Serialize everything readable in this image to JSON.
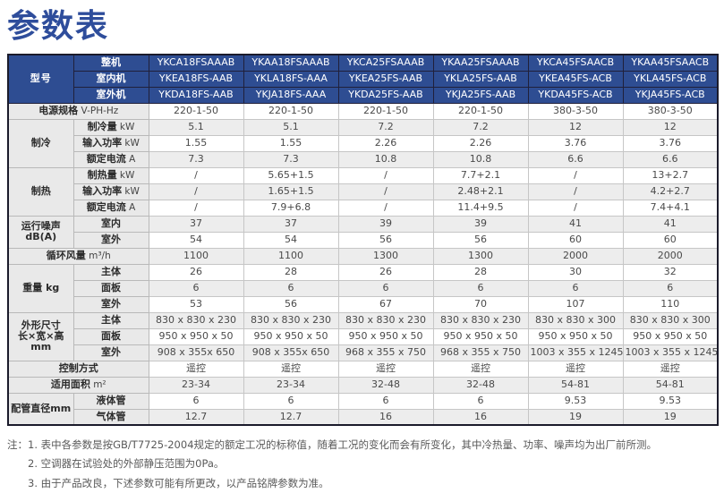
{
  "page_title": "参数表",
  "table": {
    "model_header": {
      "corner_label": "型号",
      "rows": [
        {
          "label": "整机",
          "values": [
            "YKCA18FSAAAB",
            "YKAA18FSAAAB",
            "YKCA25FSAAAB",
            "YKAA25FSAAAB",
            "YKCA45FSAACB",
            "YKAA45FSAACB"
          ]
        },
        {
          "label": "室内机",
          "values": [
            "YKEA18FS-AAB",
            "YKLA18FS-AAA",
            "YKEA25FS-AAB",
            "YKLA25FS-AAB",
            "YKEA45FS-ACB",
            "YKLA45FS-ACB"
          ]
        },
        {
          "label": "室外机",
          "values": [
            "YKDA18FS-AAB",
            "YKJA18FS-AAA",
            "YKDA25FS-AAB",
            "YKJA25FS-AAB",
            "YKDA45FS-ACB",
            "YKJA45FS-ACB"
          ]
        }
      ]
    },
    "sections": [
      {
        "category_lines": [],
        "rows": [
          {
            "full": true,
            "label": "电源规格",
            "unit": "V-PH-Hz",
            "values": [
              "220-1-50",
              "220-1-50",
              "220-1-50",
              "220-1-50",
              "380-3-50",
              "380-3-50"
            ]
          }
        ]
      },
      {
        "category_lines": [
          "制冷"
        ],
        "rows": [
          {
            "label": "制冷量",
            "unit": "kW",
            "values": [
              "5.1",
              "5.1",
              "7.2",
              "7.2",
              "12",
              "12"
            ]
          },
          {
            "label": "输入功率",
            "unit": "kW",
            "values": [
              "1.55",
              "1.55",
              "2.26",
              "2.26",
              "3.76",
              "3.76"
            ]
          },
          {
            "label": "额定电流",
            "unit": "A",
            "values": [
              "7.3",
              "7.3",
              "10.8",
              "10.8",
              "6.6",
              "6.6"
            ]
          }
        ]
      },
      {
        "category_lines": [
          "制热"
        ],
        "rows": [
          {
            "label": "制热量",
            "unit": "kW",
            "values": [
              "/",
              "5.65+1.5",
              "/",
              "7.7+2.1",
              "/",
              "13+2.7"
            ]
          },
          {
            "label": "输入功率",
            "unit": "kW",
            "values": [
              "/",
              "1.65+1.5",
              "/",
              "2.48+2.1",
              "/",
              "4.2+2.7"
            ]
          },
          {
            "label": "额定电流",
            "unit": "A",
            "values": [
              "/",
              "7.9+6.8",
              "/",
              "11.4+9.5",
              "/",
              "7.4+4.1"
            ]
          }
        ]
      },
      {
        "category_lines": [
          "运行噪声",
          "dB(A)"
        ],
        "rows": [
          {
            "label": "室内",
            "unit": "",
            "values": [
              "37",
              "37",
              "39",
              "39",
              "41",
              "41"
            ]
          },
          {
            "label": "室外",
            "unit": "",
            "values": [
              "54",
              "54",
              "56",
              "56",
              "60",
              "60"
            ]
          }
        ]
      },
      {
        "category_lines": [],
        "rows": [
          {
            "full": true,
            "label": "循环风量",
            "unit": "m³/h",
            "values": [
              "1100",
              "1100",
              "1300",
              "1300",
              "2000",
              "2000"
            ]
          }
        ]
      },
      {
        "category_lines": [
          "重量 kg"
        ],
        "rows": [
          {
            "label": "主体",
            "unit": "",
            "values": [
              "26",
              "28",
              "26",
              "28",
              "30",
              "32"
            ]
          },
          {
            "label": "面板",
            "unit": "",
            "values": [
              "6",
              "6",
              "6",
              "6",
              "6",
              "6"
            ]
          },
          {
            "label": "室外",
            "unit": "",
            "values": [
              "53",
              "56",
              "67",
              "70",
              "107",
              "110"
            ]
          }
        ]
      },
      {
        "category_lines": [
          "外形尺寸",
          "长×宽×高",
          "mm"
        ],
        "rows": [
          {
            "label": "主体",
            "unit": "",
            "values": [
              "830 x 830 x 230",
              "830 x 830 x 230",
              "830 x 830 x 230",
              "830 x 830 x 230",
              "830 x 830 x 300",
              "830 x 830 x 300"
            ]
          },
          {
            "label": "面板",
            "unit": "",
            "values": [
              "950 x 950 x 50",
              "950 x 950 x 50",
              "950 x 950 x 50",
              "950 x 950 x 50",
              "950 x 950 x 50",
              "950 x 950 x 50"
            ]
          },
          {
            "label": "室外",
            "unit": "",
            "values": [
              "908 x 355x 650",
              "908 x 355x 650",
              "968 x 355 x 750",
              "968 x 355 x 750",
              "1003 x 355 x 1245",
              "1003 x 355 x 1245"
            ]
          }
        ]
      },
      {
        "category_lines": [],
        "rows": [
          {
            "full": true,
            "label": "控制方式",
            "unit": "",
            "values": [
              "遥控",
              "遥控",
              "遥控",
              "遥控",
              "遥控",
              "遥控"
            ]
          }
        ]
      },
      {
        "category_lines": [],
        "rows": [
          {
            "full": true,
            "label": "适用面积",
            "unit": "m²",
            "values": [
              "23-34",
              "23-34",
              "32-48",
              "32-48",
              "54-81",
              "54-81"
            ]
          }
        ]
      },
      {
        "category_lines": [
          "配管直径mm"
        ],
        "rows": [
          {
            "label": "液体管",
            "unit": "",
            "values": [
              "6",
              "6",
              "6",
              "6",
              "9.53",
              "9.53"
            ]
          },
          {
            "label": "气体管",
            "unit": "",
            "values": [
              "12.7",
              "12.7",
              "16",
              "16",
              "19",
              "19"
            ]
          }
        ]
      }
    ]
  },
  "notes": {
    "prefix": "注：",
    "items": [
      "1. 表中各参数是按GB/T7725-2004规定的额定工况的标称值，随着工况的变化而会有所变化，其中冷热量、功率、噪声均为出厂前所测。",
      "2. 空调器在试验处的外部静压范围为0Pa。",
      "3. 由于产品改良，下述参数可能有所更改，以产品铭牌参数为准。"
    ]
  },
  "colors": {
    "header_blue": "#2e4d92",
    "title_blue": "#2e4d9b",
    "label_gray": "#e9e9e9",
    "zebra_gray": "#ededed",
    "outer_border": "#1b1b2b"
  }
}
